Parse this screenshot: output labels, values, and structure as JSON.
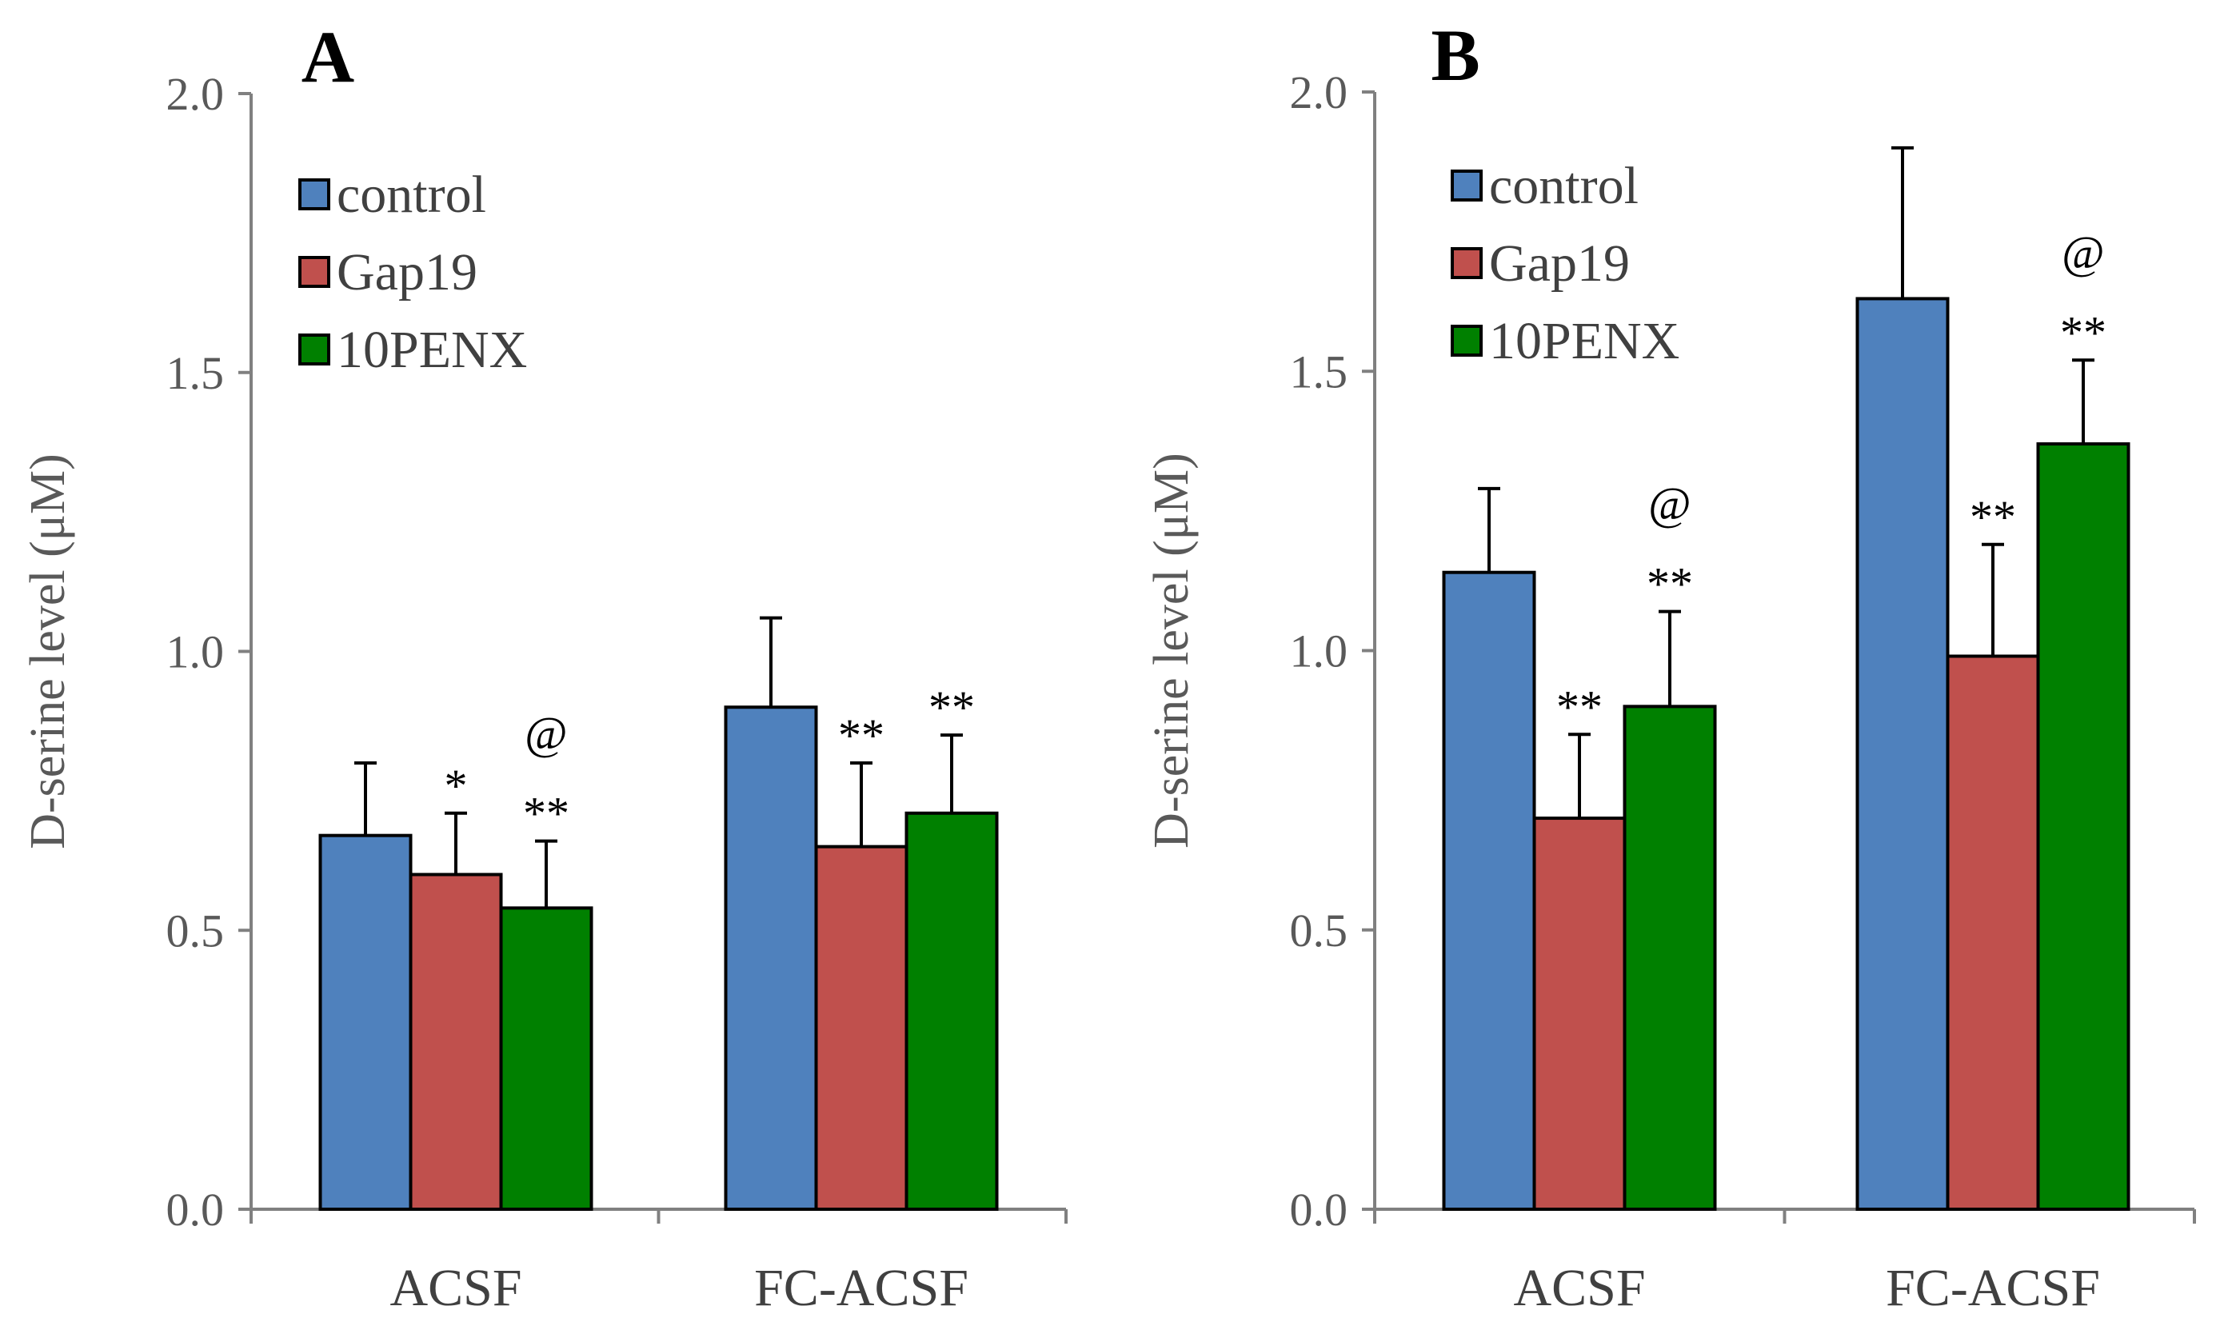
{
  "chart_data": [
    {
      "panel_label": "A",
      "type": "bar",
      "ylabel": "D-serine level (μM)",
      "ylim": [
        0,
        2.0
      ],
      "yticks": [
        "0.0",
        "0.5",
        "1.0",
        "1.5",
        "2.0"
      ],
      "categories": [
        "ACSF",
        "FC-ACSF"
      ],
      "legend_position": "top-left",
      "series": [
        {
          "name": "control",
          "color": "#4F81BD",
          "values": [
            0.67,
            0.9
          ],
          "errors": [
            0.13,
            0.16
          ]
        },
        {
          "name": "Gap19",
          "color": "#C0504D",
          "values": [
            0.6,
            0.65
          ],
          "errors": [
            0.11,
            0.15
          ]
        },
        {
          "name": "10PENX",
          "color": "#008000",
          "values": [
            0.54,
            0.71
          ],
          "errors": [
            0.12,
            0.14
          ]
        }
      ],
      "annotations": [
        {
          "category": 0,
          "series": 1,
          "stars": "*",
          "at": ""
        },
        {
          "category": 0,
          "series": 2,
          "stars": "**",
          "at": "@"
        },
        {
          "category": 1,
          "series": 1,
          "stars": "**",
          "at": ""
        },
        {
          "category": 1,
          "series": 2,
          "stars": "**",
          "at": ""
        }
      ]
    },
    {
      "panel_label": "B",
      "type": "bar",
      "ylabel": "D-serine level (μM)",
      "ylim": [
        0,
        2.0
      ],
      "yticks": [
        "0.0",
        "0.5",
        "1.0",
        "1.5",
        "2.0"
      ],
      "categories": [
        "ACSF",
        "FC-ACSF"
      ],
      "legend_position": "top-left",
      "series": [
        {
          "name": "control",
          "color": "#4F81BD",
          "values": [
            1.14,
            1.63
          ],
          "errors": [
            0.15,
            0.27
          ]
        },
        {
          "name": "Gap19",
          "color": "#C0504D",
          "values": [
            0.7,
            0.99
          ],
          "errors": [
            0.15,
            0.2
          ]
        },
        {
          "name": "10PENX",
          "color": "#008000",
          "values": [
            0.9,
            1.37
          ],
          "errors": [
            0.17,
            0.15
          ]
        }
      ],
      "annotations": [
        {
          "category": 0,
          "series": 1,
          "stars": "**",
          "at": ""
        },
        {
          "category": 0,
          "series": 2,
          "stars": "**",
          "at": "@"
        },
        {
          "category": 1,
          "series": 1,
          "stars": "**",
          "at": ""
        },
        {
          "category": 1,
          "series": 2,
          "stars": "**",
          "at": "@"
        }
      ]
    }
  ]
}
